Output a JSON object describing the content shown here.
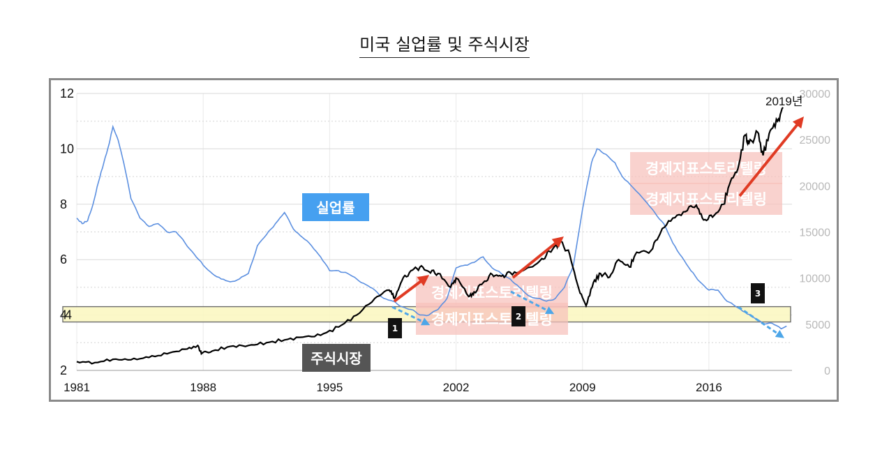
{
  "title": "미국 실업률 및 주식시장",
  "colors": {
    "unemployment": "#5b8fe0",
    "stock": "#000000",
    "band": "#fbf7c2",
    "arrow_up": "#e03b24",
    "arrow_down": "#4da6e8",
    "watermark": "#f6c1bb"
  },
  "labels": {
    "unemployment_tag": "실업률",
    "stock_tag": "주식시장",
    "year_annotation": "2019년",
    "band_label": "4",
    "watermark": "경제지표스토리텔링",
    "badges": [
      "1",
      "2",
      "3"
    ]
  },
  "chart_data": {
    "type": "line",
    "x_ticks": [
      "1981",
      "1988",
      "1995",
      "2002",
      "2009",
      "2016"
    ],
    "y_left_ticks": [
      "2",
      "4",
      "6",
      "8",
      "10",
      "12"
    ],
    "y_right_ticks": [
      "0",
      "5000",
      "10000",
      "15000",
      "20000",
      "25000",
      "30000"
    ],
    "y_left_range": [
      2,
      12
    ],
    "y_right_range": [
      0,
      30000
    ],
    "x_range": [
      1981,
      2020.6
    ],
    "grid": true,
    "series": [
      {
        "name": "실업률",
        "axis": "left",
        "points": [
          [
            1981.0,
            7.5
          ],
          [
            1981.3,
            7.3
          ],
          [
            1981.6,
            7.4
          ],
          [
            1981.9,
            8.0
          ],
          [
            1982.2,
            8.8
          ],
          [
            1982.5,
            9.5
          ],
          [
            1982.8,
            10.2
          ],
          [
            1983.0,
            10.8
          ],
          [
            1983.3,
            10.3
          ],
          [
            1983.6,
            9.5
          ],
          [
            1984.0,
            8.2
          ],
          [
            1984.5,
            7.5
          ],
          [
            1985.0,
            7.2
          ],
          [
            1985.5,
            7.3
          ],
          [
            1986.0,
            7.0
          ],
          [
            1986.5,
            7.0
          ],
          [
            1987.0,
            6.6
          ],
          [
            1987.5,
            6.2
          ],
          [
            1988.0,
            5.8
          ],
          [
            1988.5,
            5.5
          ],
          [
            1989.0,
            5.3
          ],
          [
            1989.5,
            5.2
          ],
          [
            1990.0,
            5.3
          ],
          [
            1990.5,
            5.5
          ],
          [
            1991.0,
            6.5
          ],
          [
            1991.5,
            6.9
          ],
          [
            1992.0,
            7.3
          ],
          [
            1992.5,
            7.7
          ],
          [
            1993.0,
            7.1
          ],
          [
            1993.5,
            6.8
          ],
          [
            1994.0,
            6.5
          ],
          [
            1994.5,
            6.1
          ],
          [
            1995.0,
            5.6
          ],
          [
            1995.5,
            5.6
          ],
          [
            1996.0,
            5.5
          ],
          [
            1996.5,
            5.3
          ],
          [
            1997.0,
            5.1
          ],
          [
            1997.5,
            4.9
          ],
          [
            1998.0,
            4.6
          ],
          [
            1998.5,
            4.5
          ],
          [
            1999.0,
            4.3
          ],
          [
            1999.5,
            4.2
          ],
          [
            2000.0,
            4.0
          ],
          [
            2000.5,
            4.0
          ],
          [
            2001.0,
            4.2
          ],
          [
            2001.5,
            4.6
          ],
          [
            2002.0,
            5.7
          ],
          [
            2002.5,
            5.8
          ],
          [
            2003.0,
            5.9
          ],
          [
            2003.5,
            6.1
          ],
          [
            2004.0,
            5.7
          ],
          [
            2004.5,
            5.5
          ],
          [
            2005.0,
            5.3
          ],
          [
            2005.5,
            5.0
          ],
          [
            2006.0,
            4.7
          ],
          [
            2006.5,
            4.6
          ],
          [
            2007.0,
            4.5
          ],
          [
            2007.5,
            4.6
          ],
          [
            2008.0,
            5.0
          ],
          [
            2008.5,
            5.8
          ],
          [
            2009.0,
            7.8
          ],
          [
            2009.5,
            9.5
          ],
          [
            2009.8,
            10.0
          ],
          [
            2010.3,
            9.8
          ],
          [
            2010.8,
            9.5
          ],
          [
            2011.2,
            9.0
          ],
          [
            2011.8,
            8.6
          ],
          [
            2012.5,
            8.1
          ],
          [
            2013.0,
            7.7
          ],
          [
            2013.5,
            7.3
          ],
          [
            2014.0,
            6.6
          ],
          [
            2014.5,
            6.1
          ],
          [
            2015.0,
            5.6
          ],
          [
            2015.5,
            5.2
          ],
          [
            2016.0,
            4.9
          ],
          [
            2016.5,
            4.9
          ],
          [
            2017.0,
            4.5
          ],
          [
            2017.5,
            4.3
          ],
          [
            2018.0,
            4.1
          ],
          [
            2018.5,
            3.9
          ],
          [
            2019.0,
            3.7
          ],
          [
            2019.5,
            3.7
          ],
          [
            2020.0,
            3.5
          ],
          [
            2020.3,
            3.6
          ]
        ]
      },
      {
        "name": "주식시장",
        "axis": "right",
        "points": [
          [
            1981.0,
            950
          ],
          [
            1982.0,
            850
          ],
          [
            1983.0,
            1200
          ],
          [
            1984.0,
            1150
          ],
          [
            1985.0,
            1400
          ],
          [
            1986.0,
            1800
          ],
          [
            1987.0,
            2300
          ],
          [
            1987.7,
            2700
          ],
          [
            1987.9,
            1800
          ],
          [
            1988.5,
            2100
          ],
          [
            1989.5,
            2600
          ],
          [
            1990.5,
            2700
          ],
          [
            1991.5,
            3000
          ],
          [
            1992.5,
            3300
          ],
          [
            1993.5,
            3600
          ],
          [
            1994.5,
            3800
          ],
          [
            1995.5,
            4700
          ],
          [
            1996.5,
            6000
          ],
          [
            1997.5,
            7800
          ],
          [
            1998.3,
            8700
          ],
          [
            1998.6,
            7800
          ],
          [
            1999.0,
            9700
          ],
          [
            1999.5,
            10800
          ],
          [
            2000.0,
            11200
          ],
          [
            2000.5,
            10700
          ],
          [
            2001.0,
            10500
          ],
          [
            2001.7,
            9000
          ],
          [
            2002.0,
            10000
          ],
          [
            2002.7,
            8000
          ],
          [
            2003.0,
            8500
          ],
          [
            2003.5,
            9500
          ],
          [
            2004.0,
            10400
          ],
          [
            2004.5,
            10200
          ],
          [
            2005.0,
            10600
          ],
          [
            2005.7,
            10800
          ],
          [
            2006.5,
            11600
          ],
          [
            2007.0,
            12500
          ],
          [
            2007.5,
            13500
          ],
          [
            2007.8,
            14000
          ],
          [
            2008.3,
            12500
          ],
          [
            2008.8,
            8800
          ],
          [
            2009.2,
            7000
          ],
          [
            2009.6,
            9500
          ],
          [
            2010.0,
            10500
          ],
          [
            2010.5,
            10100
          ],
          [
            2011.0,
            12000
          ],
          [
            2011.6,
            11200
          ],
          [
            2012.0,
            12800
          ],
          [
            2012.8,
            13000
          ],
          [
            2013.3,
            14800
          ],
          [
            2014.0,
            16500
          ],
          [
            2014.7,
            17200
          ],
          [
            2015.3,
            17900
          ],
          [
            2015.7,
            16300
          ],
          [
            2016.2,
            16600
          ],
          [
            2016.8,
            18000
          ],
          [
            2017.2,
            20500
          ],
          [
            2017.6,
            21800
          ],
          [
            2018.0,
            25500
          ],
          [
            2018.2,
            24500
          ],
          [
            2018.7,
            25800
          ],
          [
            2019.0,
            23300
          ],
          [
            2019.4,
            26000
          ],
          [
            2019.8,
            27000
          ],
          [
            2020.1,
            28500
          ]
        ]
      }
    ]
  }
}
